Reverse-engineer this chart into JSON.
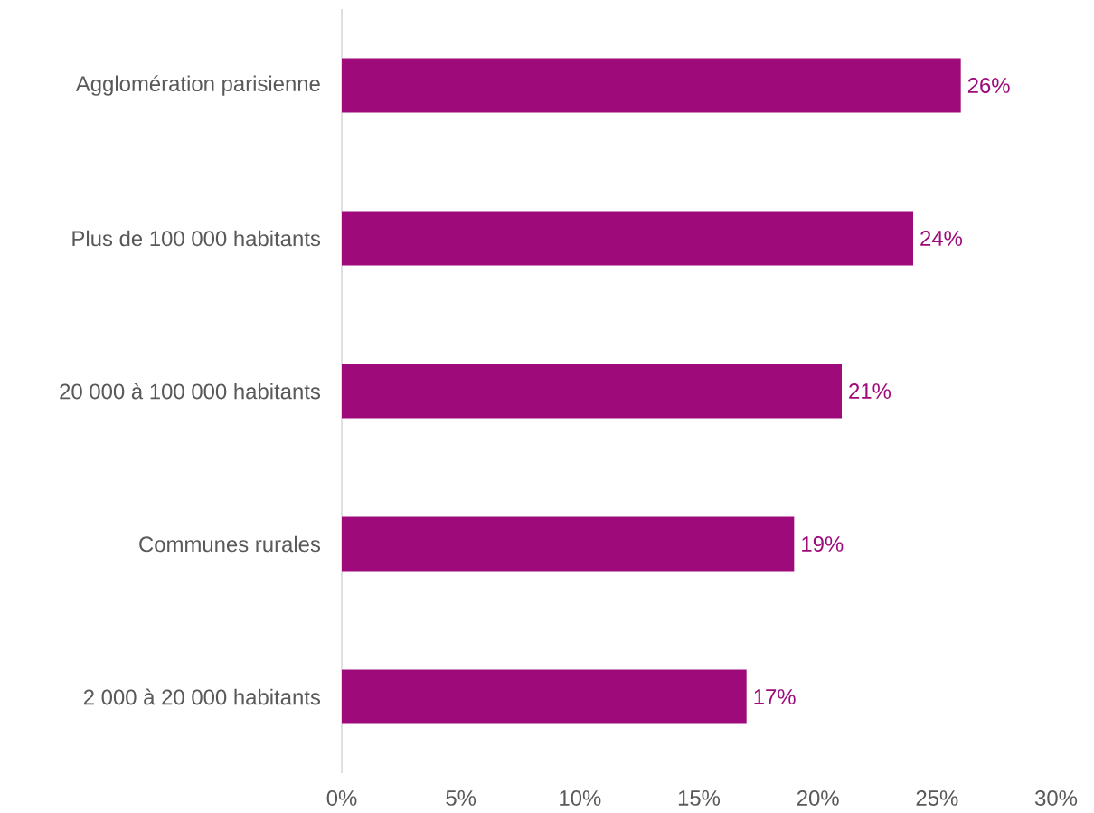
{
  "chart_data": {
    "type": "bar",
    "orientation": "horizontal",
    "categories": [
      "Agglomération parisienne",
      "Plus de 100 000 habitants",
      "20 000 à 100 000 habitants",
      "Communes rurales",
      "2 000 à 20 000 habitants"
    ],
    "values": [
      26,
      24,
      21,
      19,
      17
    ],
    "color": "#9e0a7a",
    "value_labels": [
      "26%",
      "24%",
      "21%",
      "19%",
      "17%"
    ],
    "xlim": [
      0,
      30
    ],
    "xticks": [
      {
        "value": 0,
        "label": "0%"
      },
      {
        "value": 5,
        "label": "5%"
      },
      {
        "value": 10,
        "label": "10%"
      },
      {
        "value": 15,
        "label": "15%"
      },
      {
        "value": 20,
        "label": "20%"
      },
      {
        "value": 25,
        "label": "25%"
      },
      {
        "value": 30,
        "label": "30%"
      }
    ],
    "grid": false
  }
}
